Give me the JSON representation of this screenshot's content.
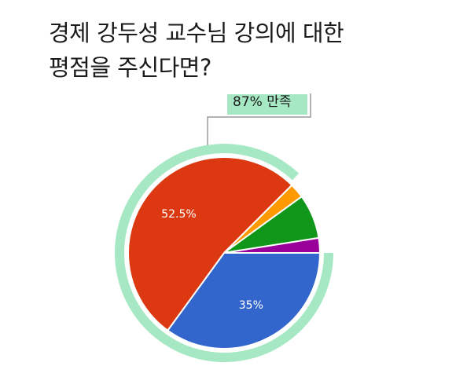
{
  "title": {
    "line1": "경제 강두성 교수님 강의에 대한",
    "line2": "평점을 주신다면?"
  },
  "chart_data": {
    "type": "pie",
    "title": "경제 강두성 교수님 강의에 대한 평점을 주신다면?",
    "slices": [
      {
        "label": "35%",
        "value": 35.0,
        "color": "#3366cc"
      },
      {
        "label": "52.5%",
        "value": 52.5,
        "color": "#dc3912"
      },
      {
        "label": "",
        "value": 2.5,
        "color": "#ff9900"
      },
      {
        "label": "",
        "value": 7.5,
        "color": "#109618"
      },
      {
        "label": "",
        "value": 2.5,
        "color": "#990099"
      }
    ],
    "annotation": {
      "text": "87% 만족",
      "value": 87,
      "color": "#a6e8c4"
    }
  }
}
